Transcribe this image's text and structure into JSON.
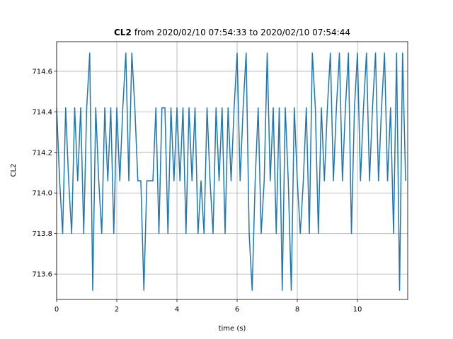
{
  "chart_data": {
    "type": "line",
    "title": {
      "bold": "CL2",
      "text": "from 2020/02/10 07:54:33 to 2020/02/10 07:54:44"
    },
    "xlabel": "time (s)",
    "ylabel": "CL2",
    "x": [
      0,
      0.1,
      0.2,
      0.3,
      0.4,
      0.5,
      0.6,
      0.7,
      0.8,
      0.9,
      1.0,
      1.1,
      1.2,
      1.3,
      1.4,
      1.5,
      1.6,
      1.7,
      1.8,
      1.9,
      2.0,
      2.1,
      2.2,
      2.3,
      2.4,
      2.5,
      2.6,
      2.7,
      2.8,
      2.9,
      3.0,
      3.1,
      3.2,
      3.3,
      3.4,
      3.5,
      3.6,
      3.7,
      3.8,
      3.9,
      4.0,
      4.1,
      4.2,
      4.3,
      4.4,
      4.5,
      4.6,
      4.7,
      4.8,
      4.9,
      5.0,
      5.1,
      5.2,
      5.3,
      5.4,
      5.5,
      5.6,
      5.7,
      5.8,
      5.9,
      6.0,
      6.1,
      6.2,
      6.3,
      6.4,
      6.5,
      6.6,
      6.7,
      6.8,
      6.9,
      7.0,
      7.1,
      7.2,
      7.3,
      7.4,
      7.5,
      7.6,
      7.7,
      7.8,
      7.9,
      8.0,
      8.1,
      8.2,
      8.3,
      8.4,
      8.5,
      8.6,
      8.7,
      8.8,
      8.9,
      9.0,
      9.1,
      9.2,
      9.3,
      9.4,
      9.5,
      9.6,
      9.7,
      9.8,
      9.9,
      10.0,
      10.1,
      10.2,
      10.3,
      10.4,
      10.5,
      10.6,
      10.7,
      10.8,
      10.9,
      11.0,
      11.1,
      11.2,
      11.3,
      11.4,
      11.5,
      11.6
    ],
    "series": [
      {
        "name": "CL2",
        "color": "#1f77b4",
        "values": [
          714.42,
          714.06,
          713.8,
          714.42,
          714.06,
          713.8,
          714.42,
          714.06,
          714.42,
          713.8,
          714.42,
          714.69,
          713.52,
          714.42,
          714.06,
          713.8,
          714.42,
          714.06,
          714.42,
          713.8,
          714.42,
          714.06,
          714.42,
          714.69,
          714.06,
          714.69,
          714.42,
          714.06,
          714.06,
          713.52,
          714.06,
          714.06,
          714.06,
          714.42,
          713.8,
          714.42,
          714.42,
          713.8,
          714.42,
          714.06,
          714.42,
          714.06,
          714.42,
          713.8,
          714.42,
          714.06,
          714.42,
          713.8,
          714.06,
          713.8,
          714.42,
          714.06,
          713.8,
          714.42,
          714.06,
          714.42,
          713.8,
          714.42,
          714.06,
          714.42,
          714.69,
          714.06,
          714.42,
          714.69,
          713.8,
          713.52,
          714.06,
          714.42,
          713.8,
          714.06,
          714.69,
          714.06,
          714.42,
          713.8,
          714.42,
          713.52,
          714.42,
          714.06,
          713.52,
          714.42,
          714.06,
          713.8,
          714.06,
          714.42,
          713.8,
          714.69,
          714.42,
          713.8,
          714.42,
          714.06,
          714.42,
          714.69,
          714.06,
          714.42,
          714.69,
          714.06,
          714.42,
          714.69,
          713.8,
          714.42,
          714.69,
          714.06,
          714.42,
          714.69,
          714.06,
          714.42,
          714.69,
          714.06,
          714.42,
          714.69,
          714.06,
          714.42,
          713.8,
          714.69,
          713.52,
          714.69,
          714.06
        ]
      }
    ],
    "xlim": [
      0,
      11.67
    ],
    "ylim": [
      713.475,
      714.746
    ],
    "xticks": [
      0,
      2,
      4,
      6,
      8,
      10
    ],
    "yticks": [
      {
        "value": 713.6,
        "label": "713.6"
      },
      {
        "value": 713.8,
        "label": "713.8"
      },
      {
        "value": 714.0,
        "label": "714.0"
      },
      {
        "value": 714.2,
        "label": "714.2"
      },
      {
        "value": 714.4,
        "label": "714.4"
      },
      {
        "value": 714.6,
        "label": "714.6"
      }
    ],
    "grid": true
  }
}
